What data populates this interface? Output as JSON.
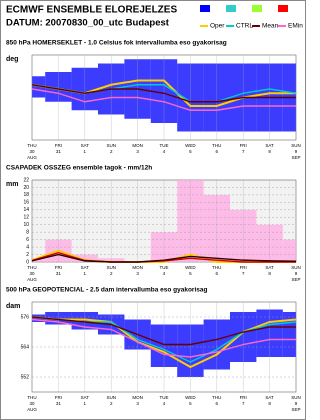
{
  "header": {
    "title": "ECMWF ENSEMBLE ELOREJELZES",
    "subtitle": "DATUM: 20070830_00_utc  Budapest"
  },
  "chart_data": [
    {
      "type": "line",
      "title": "850 hPa HOMERSEKLET - 1.0 Celsius fok intervallumba eso gyakorisag",
      "ylabel": "deg",
      "categories": [
        "THU",
        "FRI",
        "SAT",
        "SUN",
        "MON",
        "TUE",
        "WED",
        "THU",
        "FRI",
        "SAT",
        "SUN"
      ],
      "days": [
        "30",
        "31",
        "1",
        "2",
        "3",
        "4",
        "5",
        "6",
        "7",
        "8",
        "9"
      ],
      "months": [
        "AUG",
        "SEP"
      ],
      "ylim": [
        4,
        24
      ],
      "spread_color": "#1a1aff",
      "spread": {
        "high": [
          19,
          20,
          21,
          22,
          23,
          23,
          22,
          22,
          22,
          22,
          22
        ],
        "low": [
          14,
          13,
          11,
          10,
          9,
          8,
          6,
          6,
          6,
          6,
          6
        ]
      },
      "series": [
        {
          "name": "Oper",
          "color": "#ffcc00",
          "values": [
            17,
            16,
            15,
            17,
            18,
            18,
            12,
            12,
            14,
            15,
            15
          ]
        },
        {
          "name": "CTRL",
          "color": "#00cccc",
          "values": [
            17,
            16,
            15,
            16,
            17,
            17,
            13,
            13,
            15,
            16,
            15
          ]
        },
        {
          "name": "Mean",
          "color": "#660000",
          "values": [
            17,
            16,
            15,
            16,
            16,
            15,
            13,
            13,
            14,
            14,
            14
          ]
        },
        {
          "name": "EMin",
          "color": "#ff66cc",
          "values": [
            16,
            15,
            13,
            14,
            14,
            13,
            11,
            11,
            12,
            12,
            12
          ]
        }
      ]
    },
    {
      "type": "line",
      "title": "CSAPADEK OSSZEG ensemble tagok - mm/12h",
      "ylabel": "mm",
      "categories": [
        "THU",
        "FRI",
        "SAT",
        "SUN",
        "MON",
        "TUE",
        "WED",
        "THU",
        "FRI",
        "SAT",
        "SUN"
      ],
      "days": [
        "30",
        "31",
        "1",
        "2",
        "3",
        "4",
        "5",
        "6",
        "7",
        "8",
        "9"
      ],
      "months": [
        "AUG",
        "SEP"
      ],
      "ylim": [
        0,
        22
      ],
      "yticks": [
        0,
        2,
        4,
        6,
        8,
        10,
        12,
        14,
        16,
        18,
        20,
        22
      ],
      "spread_color": "#ffb3e6",
      "spread": {
        "high": [
          1,
          6,
          2,
          1,
          0,
          8,
          22,
          18,
          14,
          10,
          6
        ],
        "low": [
          0,
          0,
          0,
          0,
          0,
          0,
          0,
          0,
          0,
          0,
          0
        ]
      },
      "series": [
        {
          "color": "#ffcc00",
          "values": [
            0.5,
            3,
            0.5,
            0,
            0,
            0,
            2,
            0,
            0,
            0,
            0
          ]
        },
        {
          "color": "#cc0000",
          "values": [
            0.4,
            2.5,
            0.4,
            0,
            0,
            0.3,
            1,
            0.5,
            0,
            0,
            0
          ]
        },
        {
          "color": "#330000",
          "values": [
            0.3,
            2,
            0.3,
            0,
            0,
            0.5,
            1.5,
            1,
            0.5,
            0.3,
            0.2
          ]
        }
      ]
    },
    {
      "type": "line",
      "title": "500 hPa GEOPOTENCIAL - 2.5 dam intervallumba eso gyakorisag",
      "ylabel": "dam",
      "categories": [
        "THU",
        "FRI",
        "SAT",
        "SUN",
        "MON",
        "TUE",
        "WED",
        "THU",
        "FRI",
        "SAT",
        "SUN"
      ],
      "days": [
        "30",
        "31",
        "1",
        "2",
        "3",
        "4",
        "5",
        "6",
        "7",
        "8",
        "9"
      ],
      "months": [
        "AUG",
        "SEP"
      ],
      "ylim": [
        546,
        582
      ],
      "yticks": [
        552,
        564,
        576
      ],
      "spread_color": "#1a1aff",
      "spread": {
        "high": [
          577,
          578,
          578,
          577,
          575,
          573,
          573,
          575,
          578,
          579,
          578
        ],
        "low": [
          574,
          573,
          571,
          569,
          563,
          556,
          552,
          555,
          558,
          560,
          560
        ]
      },
      "series": [
        {
          "color": "#ffcc00",
          "values": [
            576,
            575,
            575,
            574,
            566,
            562,
            556,
            561,
            570,
            574,
            575
          ]
        },
        {
          "color": "#00cccc",
          "values": [
            576,
            575,
            574,
            574,
            567,
            563,
            558,
            563,
            570,
            573,
            574
          ]
        },
        {
          "color": "#660000",
          "values": [
            576,
            575,
            574,
            573,
            569,
            565,
            565,
            567,
            570,
            572,
            572
          ]
        },
        {
          "color": "#ff66cc",
          "values": [
            575,
            574,
            572,
            571,
            566,
            561,
            560,
            562,
            565,
            567,
            567
          ]
        }
      ]
    }
  ]
}
